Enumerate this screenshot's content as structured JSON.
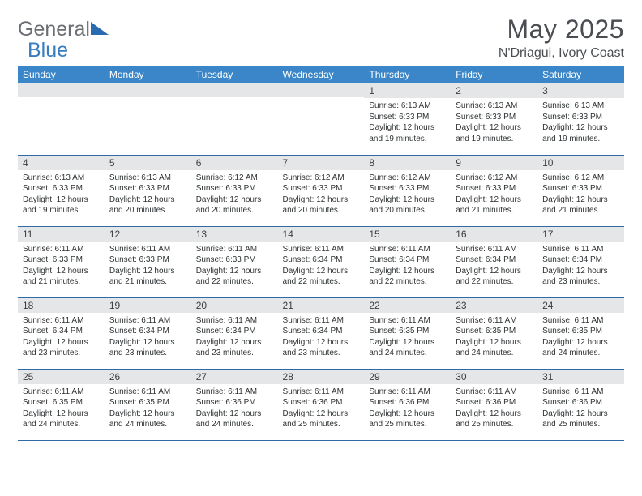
{
  "brand": {
    "part1": "General",
    "part2": "Blue"
  },
  "title": "May 2025",
  "location": "N'Driagui, Ivory Coast",
  "colors": {
    "header_bg": "#3a86c8",
    "header_text": "#ffffff",
    "daynum_bg": "#e4e6e8",
    "row_border": "#2f6aa6",
    "text": "#2f3335",
    "title_text": "#4a4e52",
    "logo_gray": "#6b6f73",
    "logo_blue": "#3a7dbf"
  },
  "weekdays": [
    "Sunday",
    "Monday",
    "Tuesday",
    "Wednesday",
    "Thursday",
    "Friday",
    "Saturday"
  ],
  "weeks": [
    [
      {
        "day": "",
        "sunrise": "",
        "sunset": "",
        "daylight": ""
      },
      {
        "day": "",
        "sunrise": "",
        "sunset": "",
        "daylight": ""
      },
      {
        "day": "",
        "sunrise": "",
        "sunset": "",
        "daylight": ""
      },
      {
        "day": "",
        "sunrise": "",
        "sunset": "",
        "daylight": ""
      },
      {
        "day": "1",
        "sunrise": "Sunrise: 6:13 AM",
        "sunset": "Sunset: 6:33 PM",
        "daylight": "Daylight: 12 hours and 19 minutes."
      },
      {
        "day": "2",
        "sunrise": "Sunrise: 6:13 AM",
        "sunset": "Sunset: 6:33 PM",
        "daylight": "Daylight: 12 hours and 19 minutes."
      },
      {
        "day": "3",
        "sunrise": "Sunrise: 6:13 AM",
        "sunset": "Sunset: 6:33 PM",
        "daylight": "Daylight: 12 hours and 19 minutes."
      }
    ],
    [
      {
        "day": "4",
        "sunrise": "Sunrise: 6:13 AM",
        "sunset": "Sunset: 6:33 PM",
        "daylight": "Daylight: 12 hours and 19 minutes."
      },
      {
        "day": "5",
        "sunrise": "Sunrise: 6:13 AM",
        "sunset": "Sunset: 6:33 PM",
        "daylight": "Daylight: 12 hours and 20 minutes."
      },
      {
        "day": "6",
        "sunrise": "Sunrise: 6:12 AM",
        "sunset": "Sunset: 6:33 PM",
        "daylight": "Daylight: 12 hours and 20 minutes."
      },
      {
        "day": "7",
        "sunrise": "Sunrise: 6:12 AM",
        "sunset": "Sunset: 6:33 PM",
        "daylight": "Daylight: 12 hours and 20 minutes."
      },
      {
        "day": "8",
        "sunrise": "Sunrise: 6:12 AM",
        "sunset": "Sunset: 6:33 PM",
        "daylight": "Daylight: 12 hours and 20 minutes."
      },
      {
        "day": "9",
        "sunrise": "Sunrise: 6:12 AM",
        "sunset": "Sunset: 6:33 PM",
        "daylight": "Daylight: 12 hours and 21 minutes."
      },
      {
        "day": "10",
        "sunrise": "Sunrise: 6:12 AM",
        "sunset": "Sunset: 6:33 PM",
        "daylight": "Daylight: 12 hours and 21 minutes."
      }
    ],
    [
      {
        "day": "11",
        "sunrise": "Sunrise: 6:11 AM",
        "sunset": "Sunset: 6:33 PM",
        "daylight": "Daylight: 12 hours and 21 minutes."
      },
      {
        "day": "12",
        "sunrise": "Sunrise: 6:11 AM",
        "sunset": "Sunset: 6:33 PM",
        "daylight": "Daylight: 12 hours and 21 minutes."
      },
      {
        "day": "13",
        "sunrise": "Sunrise: 6:11 AM",
        "sunset": "Sunset: 6:33 PM",
        "daylight": "Daylight: 12 hours and 22 minutes."
      },
      {
        "day": "14",
        "sunrise": "Sunrise: 6:11 AM",
        "sunset": "Sunset: 6:34 PM",
        "daylight": "Daylight: 12 hours and 22 minutes."
      },
      {
        "day": "15",
        "sunrise": "Sunrise: 6:11 AM",
        "sunset": "Sunset: 6:34 PM",
        "daylight": "Daylight: 12 hours and 22 minutes."
      },
      {
        "day": "16",
        "sunrise": "Sunrise: 6:11 AM",
        "sunset": "Sunset: 6:34 PM",
        "daylight": "Daylight: 12 hours and 22 minutes."
      },
      {
        "day": "17",
        "sunrise": "Sunrise: 6:11 AM",
        "sunset": "Sunset: 6:34 PM",
        "daylight": "Daylight: 12 hours and 23 minutes."
      }
    ],
    [
      {
        "day": "18",
        "sunrise": "Sunrise: 6:11 AM",
        "sunset": "Sunset: 6:34 PM",
        "daylight": "Daylight: 12 hours and 23 minutes."
      },
      {
        "day": "19",
        "sunrise": "Sunrise: 6:11 AM",
        "sunset": "Sunset: 6:34 PM",
        "daylight": "Daylight: 12 hours and 23 minutes."
      },
      {
        "day": "20",
        "sunrise": "Sunrise: 6:11 AM",
        "sunset": "Sunset: 6:34 PM",
        "daylight": "Daylight: 12 hours and 23 minutes."
      },
      {
        "day": "21",
        "sunrise": "Sunrise: 6:11 AM",
        "sunset": "Sunset: 6:34 PM",
        "daylight": "Daylight: 12 hours and 23 minutes."
      },
      {
        "day": "22",
        "sunrise": "Sunrise: 6:11 AM",
        "sunset": "Sunset: 6:35 PM",
        "daylight": "Daylight: 12 hours and 24 minutes."
      },
      {
        "day": "23",
        "sunrise": "Sunrise: 6:11 AM",
        "sunset": "Sunset: 6:35 PM",
        "daylight": "Daylight: 12 hours and 24 minutes."
      },
      {
        "day": "24",
        "sunrise": "Sunrise: 6:11 AM",
        "sunset": "Sunset: 6:35 PM",
        "daylight": "Daylight: 12 hours and 24 minutes."
      }
    ],
    [
      {
        "day": "25",
        "sunrise": "Sunrise: 6:11 AM",
        "sunset": "Sunset: 6:35 PM",
        "daylight": "Daylight: 12 hours and 24 minutes."
      },
      {
        "day": "26",
        "sunrise": "Sunrise: 6:11 AM",
        "sunset": "Sunset: 6:35 PM",
        "daylight": "Daylight: 12 hours and 24 minutes."
      },
      {
        "day": "27",
        "sunrise": "Sunrise: 6:11 AM",
        "sunset": "Sunset: 6:36 PM",
        "daylight": "Daylight: 12 hours and 24 minutes."
      },
      {
        "day": "28",
        "sunrise": "Sunrise: 6:11 AM",
        "sunset": "Sunset: 6:36 PM",
        "daylight": "Daylight: 12 hours and 25 minutes."
      },
      {
        "day": "29",
        "sunrise": "Sunrise: 6:11 AM",
        "sunset": "Sunset: 6:36 PM",
        "daylight": "Daylight: 12 hours and 25 minutes."
      },
      {
        "day": "30",
        "sunrise": "Sunrise: 6:11 AM",
        "sunset": "Sunset: 6:36 PM",
        "daylight": "Daylight: 12 hours and 25 minutes."
      },
      {
        "day": "31",
        "sunrise": "Sunrise: 6:11 AM",
        "sunset": "Sunset: 6:36 PM",
        "daylight": "Daylight: 12 hours and 25 minutes."
      }
    ]
  ]
}
